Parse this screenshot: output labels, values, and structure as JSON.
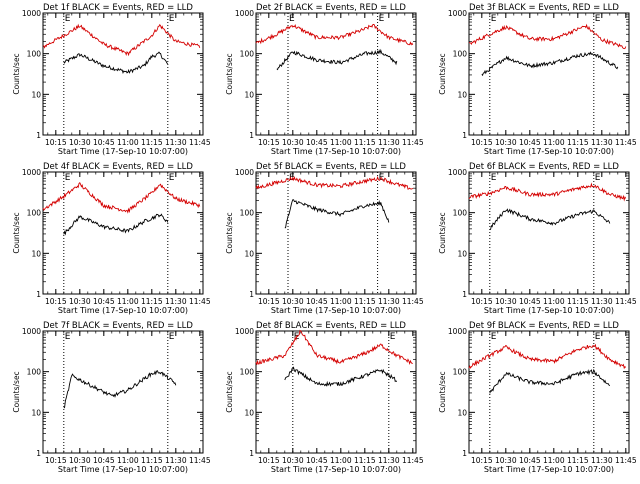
{
  "figure": {
    "ylabel": "Counts/sec",
    "xlabel": "Start Time (17-Sep-10 10:07:00)",
    "x_ticks": [
      "10:15",
      "10:30",
      "10:45",
      "11:00",
      "11:15",
      "11:30",
      "11:45"
    ],
    "y_ticks": [
      "1",
      "10",
      "100",
      "1000"
    ],
    "marker_E": "E",
    "colors": {
      "events": "#000000",
      "lld": "#d40000",
      "axis": "#000000"
    }
  },
  "chart_data": [
    {
      "type": "line",
      "title": "Det 1f BLACK = Events, RED = LLD",
      "markers": [
        "10:20",
        "11:25"
      ],
      "xlim": [
        "10:07",
        "11:47"
      ],
      "ylim": [
        1,
        1000
      ],
      "yscale": "log",
      "series": [
        {
          "name": "Events",
          "color": "#000000",
          "x": [
            "10:20",
            "10:30",
            "10:45",
            "11:00",
            "11:10",
            "11:15",
            "11:20",
            "11:25"
          ],
          "values": [
            60,
            95,
            50,
            35,
            50,
            85,
            100,
            55
          ]
        },
        {
          "name": "LLD",
          "color": "#d40000",
          "x": [
            "10:07",
            "10:20",
            "10:30",
            "10:45",
            "11:00",
            "11:15",
            "11:20",
            "11:30",
            "11:45"
          ],
          "values": [
            145,
            280,
            480,
            170,
            100,
            280,
            500,
            200,
            150
          ]
        }
      ]
    },
    {
      "type": "line",
      "title": "Det 2f BLACK = Events, RED = LLD",
      "markers": [
        "10:27",
        "11:23"
      ],
      "xlim": [
        "10:07",
        "11:47"
      ],
      "ylim": [
        1,
        1000
      ],
      "yscale": "log",
      "series": [
        {
          "name": "Events",
          "color": "#000000",
          "x": [
            "10:20",
            "10:30",
            "10:45",
            "11:00",
            "11:15",
            "11:25",
            "11:35"
          ],
          "values": [
            40,
            110,
            70,
            60,
            100,
            110,
            60
          ]
        },
        {
          "name": "LLD",
          "color": "#d40000",
          "x": [
            "10:07",
            "10:20",
            "10:30",
            "10:45",
            "11:00",
            "11:15",
            "11:20",
            "11:30",
            "11:45"
          ],
          "values": [
            180,
            300,
            500,
            250,
            250,
            400,
            500,
            250,
            170
          ]
        }
      ]
    },
    {
      "type": "line",
      "title": "Det 3f BLACK = Events, RED = LLD",
      "markers": [
        "10:20",
        "11:25"
      ],
      "xlim": [
        "10:07",
        "11:47"
      ],
      "ylim": [
        1,
        1000
      ],
      "yscale": "log",
      "series": [
        {
          "name": "Events",
          "color": "#000000",
          "x": [
            "10:15",
            "10:30",
            "10:45",
            "11:00",
            "11:15",
            "11:25",
            "11:40"
          ],
          "values": [
            30,
            80,
            50,
            60,
            90,
            100,
            45
          ]
        },
        {
          "name": "LLD",
          "color": "#d40000",
          "x": [
            "10:07",
            "10:20",
            "10:30",
            "10:45",
            "11:00",
            "11:15",
            "11:20",
            "11:30",
            "11:45"
          ],
          "values": [
            170,
            300,
            450,
            230,
            230,
            400,
            480,
            220,
            140
          ]
        }
      ]
    },
    {
      "type": "line",
      "title": "Det 4f BLACK = Events, RED = LLD",
      "markers": [
        "10:20",
        "11:25"
      ],
      "xlim": [
        "10:07",
        "11:47"
      ],
      "ylim": [
        1,
        1000
      ],
      "yscale": "log",
      "series": [
        {
          "name": "Events",
          "color": "#000000",
          "x": [
            "10:20",
            "10:30",
            "10:45",
            "11:00",
            "11:10",
            "11:20",
            "11:25"
          ],
          "values": [
            30,
            80,
            45,
            35,
            60,
            90,
            60
          ]
        },
        {
          "name": "LLD",
          "color": "#d40000",
          "x": [
            "10:07",
            "10:20",
            "10:30",
            "10:45",
            "11:00",
            "11:15",
            "11:20",
            "11:30",
            "11:45"
          ],
          "values": [
            120,
            250,
            500,
            150,
            110,
            300,
            500,
            220,
            150
          ]
        }
      ]
    },
    {
      "type": "line",
      "title": "Det 5f BLACK = Events, RED = LLD",
      "markers": [
        "10:27",
        "11:23"
      ],
      "xlim": [
        "10:07",
        "11:47"
      ],
      "ylim": [
        1,
        1000
      ],
      "yscale": "log",
      "series": [
        {
          "name": "Events",
          "color": "#000000",
          "x": [
            "10:25",
            "10:30",
            "10:45",
            "11:00",
            "11:15",
            "11:25",
            "11:30"
          ],
          "values": [
            40,
            200,
            120,
            90,
            150,
            170,
            60
          ]
        },
        {
          "name": "LLD",
          "color": "#d40000",
          "x": [
            "10:07",
            "10:20",
            "10:30",
            "10:45",
            "11:00",
            "11:15",
            "11:25",
            "11:35",
            "11:45"
          ],
          "values": [
            400,
            550,
            700,
            480,
            450,
            600,
            700,
            500,
            380
          ]
        }
      ]
    },
    {
      "type": "line",
      "title": "Det 6f BLACK = Events, RED = LLD",
      "markers": [
        "10:20",
        "11:25"
      ],
      "xlim": [
        "10:07",
        "11:47"
      ],
      "ylim": [
        1,
        1000
      ],
      "yscale": "log",
      "series": [
        {
          "name": "Events",
          "color": "#000000",
          "x": [
            "10:20",
            "10:30",
            "10:45",
            "11:00",
            "11:15",
            "11:25",
            "11:35"
          ],
          "values": [
            40,
            120,
            70,
            55,
            90,
            110,
            55
          ]
        },
        {
          "name": "LLD",
          "color": "#d40000",
          "x": [
            "10:07",
            "10:20",
            "10:30",
            "10:45",
            "11:00",
            "11:15",
            "11:25",
            "11:35",
            "11:45"
          ],
          "values": [
            240,
            300,
            420,
            280,
            280,
            400,
            480,
            280,
            220
          ]
        }
      ]
    },
    {
      "type": "line",
      "title": "Det 7f BLACK = Events, RED = LLD",
      "markers": [
        "10:20",
        "11:25"
      ],
      "xlim": [
        "10:07",
        "11:47"
      ],
      "ylim": [
        1,
        1000
      ],
      "yscale": "log",
      "series": [
        {
          "name": "Events",
          "color": "#000000",
          "x": [
            "10:20",
            "10:25",
            "10:35",
            "10:50",
            "11:00",
            "11:15",
            "11:20",
            "11:30"
          ],
          "values": [
            12,
            80,
            50,
            25,
            35,
            90,
            100,
            50
          ]
        }
      ]
    },
    {
      "type": "line",
      "title": "Det 8f BLACK = Events, RED = LLD",
      "markers": [
        "10:30",
        "11:30"
      ],
      "xlim": [
        "10:07",
        "11:47"
      ],
      "ylim": [
        1,
        1000
      ],
      "yscale": "log",
      "series": [
        {
          "name": "Events",
          "color": "#000000",
          "x": [
            "10:25",
            "10:30",
            "10:45",
            "11:00",
            "11:15",
            "11:25",
            "11:35"
          ],
          "values": [
            60,
            120,
            50,
            50,
            80,
            110,
            60
          ]
        },
        {
          "name": "LLD",
          "color": "#d40000",
          "x": [
            "10:07",
            "10:25",
            "10:35",
            "10:45",
            "11:00",
            "11:15",
            "11:25",
            "11:35",
            "11:45"
          ],
          "values": [
            160,
            250,
            1000,
            250,
            170,
            280,
            450,
            250,
            160
          ]
        }
      ]
    },
    {
      "type": "line",
      "title": "Det 9f BLACK = Events, RED = LLD",
      "markers": [
        "10:20",
        "11:25"
      ],
      "xlim": [
        "10:07",
        "11:47"
      ],
      "ylim": [
        1,
        1000
      ],
      "yscale": "log",
      "series": [
        {
          "name": "Events",
          "color": "#000000",
          "x": [
            "10:20",
            "10:30",
            "10:45",
            "11:00",
            "11:15",
            "11:25",
            "11:35"
          ],
          "values": [
            30,
            90,
            55,
            50,
            90,
            100,
            45
          ]
        },
        {
          "name": "LLD",
          "color": "#d40000",
          "x": [
            "10:07",
            "10:20",
            "10:30",
            "10:45",
            "11:00",
            "11:15",
            "11:25",
            "11:35",
            "11:45"
          ],
          "values": [
            130,
            250,
            400,
            200,
            180,
            350,
            450,
            200,
            130
          ]
        }
      ]
    }
  ]
}
